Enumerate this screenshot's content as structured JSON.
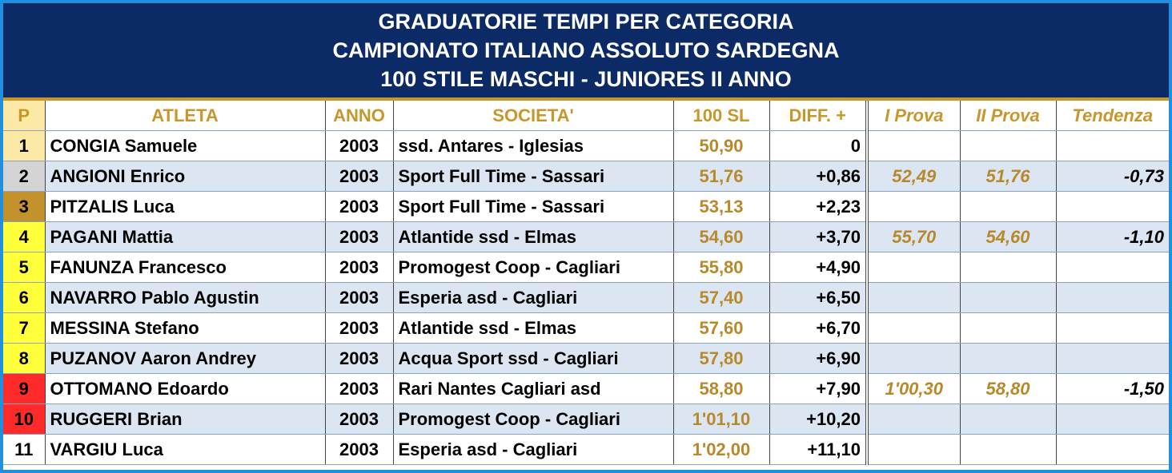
{
  "header": {
    "lines": [
      "GRADUATORIE TEMPI PER CATEGORIA",
      "CAMPIONATO ITALIANO ASSOLUTO SARDEGNA",
      "100 STILE MASCHI - JUNIORES II ANNO"
    ]
  },
  "table": {
    "columns": [
      "P",
      "ATLETA",
      "ANNO",
      "SOCIETA'",
      "100 SL",
      "DIFF. +",
      "I Prova",
      "II Prova",
      "Tendenza"
    ],
    "rows": [
      [
        "1",
        "CONGIA Samuele",
        "2003",
        "ssd. Antares - Iglesias",
        "50,90",
        "0",
        null,
        null,
        null
      ],
      [
        "2",
        "ANGIONI Enrico",
        "2003",
        "Sport Full Time - Sassari",
        "51,76",
        "+0,86",
        "52,49",
        "51,76",
        "-0,73"
      ],
      [
        "3",
        "PITZALIS Luca",
        "2003",
        "Sport Full Time - Sassari",
        "53,13",
        "+2,23",
        null,
        null,
        null
      ],
      [
        "4",
        "PAGANI Mattia",
        "2003",
        "Atlantide ssd - Elmas",
        "54,60",
        "+3,70",
        "55,70",
        "54,60",
        "-1,10"
      ],
      [
        "5",
        "FANUNZA Francesco",
        "2003",
        "Promogest Coop - Cagliari",
        "55,80",
        "+4,90",
        null,
        null,
        null
      ],
      [
        "6",
        "NAVARRO Pablo Agustin",
        "2003",
        "Esperia asd - Cagliari",
        "57,40",
        "+6,50",
        null,
        null,
        null
      ],
      [
        "7",
        "MESSINA Stefano",
        "2003",
        "Atlantide ssd - Elmas",
        "57,60",
        "+6,70",
        null,
        null,
        null
      ],
      [
        "8",
        "PUZANOV Aaron Andrey",
        "2003",
        "Acqua Sport ssd - Cagliari",
        "57,80",
        "+6,90",
        null,
        null,
        null
      ],
      [
        "9",
        "OTTOMANO Edoardo",
        "2003",
        "Rari Nantes Cagliari asd",
        "58,80",
        "+7,90",
        "1'00,30",
        "58,80",
        "-1,50"
      ],
      [
        "10",
        "RUGGERI Brian",
        "2003",
        "Promogest Coop - Cagliari",
        "1'01,10",
        "+10,20",
        null,
        null,
        null
      ],
      [
        "11",
        "VARGIU Luca",
        "2003",
        "Esperia asd - Cagliari",
        "1'02,00",
        "+11,10",
        null,
        null,
        null
      ]
    ],
    "rank_colors": [
      "#fde9a6",
      "#d4d4d4",
      "#c4922c",
      "#ffff3c",
      "#ffff3c",
      "#ffff3c",
      "#ffff3c",
      "#ffff3c",
      "#ff2a2a",
      "#ff2a2a",
      "#ffffff"
    ]
  }
}
